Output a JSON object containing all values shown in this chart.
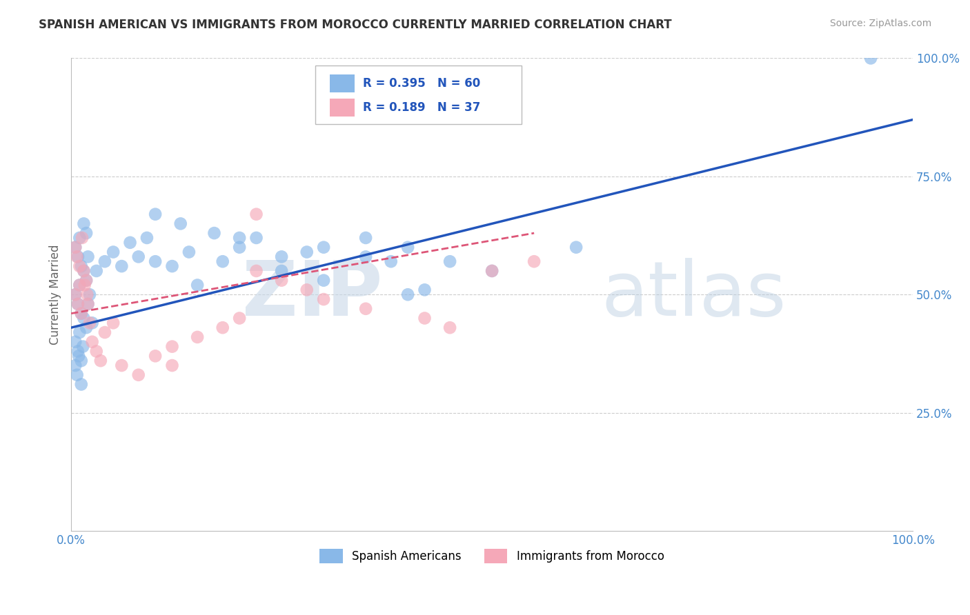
{
  "title": "SPANISH AMERICAN VS IMMIGRANTS FROM MOROCCO CURRENTLY MARRIED CORRELATION CHART",
  "source": "Source: ZipAtlas.com",
  "ylabel": "Currently Married",
  "xlim": [
    0.0,
    1.0
  ],
  "ylim": [
    0.0,
    1.0
  ],
  "xticks": [
    0.0,
    0.25,
    0.5,
    0.75,
    1.0
  ],
  "yticks": [
    0.0,
    0.25,
    0.5,
    0.75,
    1.0
  ],
  "xtick_labels": [
    "0.0%",
    "",
    "",
    "",
    "100.0%"
  ],
  "ytick_labels": [
    "",
    "25.0%",
    "50.0%",
    "75.0%",
    "100.0%"
  ],
  "blue_color": "#89b8e8",
  "pink_color": "#f5a8b8",
  "blue_line_color": "#2255bb",
  "pink_line_color": "#dd5577",
  "legend_R_blue": "R = 0.395",
  "legend_N_blue": "N = 60",
  "legend_R_pink": "R = 0.189",
  "legend_N_pink": "N = 37",
  "legend_label_blue": "Spanish Americans",
  "legend_label_pink": "Immigrants from Morocco",
  "watermark_zip": "ZIP",
  "watermark_atlas": "atlas",
  "background_color": "#ffffff",
  "grid_color": "#cccccc",
  "title_color": "#333333",
  "blue_line_x0": 0.0,
  "blue_line_y0": 0.43,
  "blue_line_x1": 1.0,
  "blue_line_y1": 0.87,
  "pink_line_x0": 0.0,
  "pink_line_y0": 0.46,
  "pink_line_x1": 0.55,
  "pink_line_y1": 0.63,
  "blue_scatter_x": [
    0.005,
    0.008,
    0.01,
    0.012,
    0.015,
    0.018,
    0.02,
    0.022,
    0.025,
    0.005,
    0.008,
    0.01,
    0.012,
    0.015,
    0.018,
    0.02,
    0.005,
    0.008,
    0.01,
    0.012,
    0.015,
    0.018,
    0.005,
    0.007,
    0.009,
    0.012,
    0.014,
    0.03,
    0.04,
    0.05,
    0.06,
    0.07,
    0.08,
    0.09,
    0.1,
    0.12,
    0.14,
    0.15,
    0.18,
    0.2,
    0.22,
    0.25,
    0.28,
    0.3,
    0.35,
    0.38,
    0.4,
    0.42,
    0.45,
    0.5,
    0.1,
    0.13,
    0.17,
    0.2,
    0.25,
    0.3,
    0.35,
    0.6,
    0.95,
    0.4
  ],
  "blue_scatter_y": [
    0.5,
    0.48,
    0.52,
    0.46,
    0.55,
    0.53,
    0.48,
    0.5,
    0.44,
    0.6,
    0.58,
    0.62,
    0.56,
    0.65,
    0.63,
    0.58,
    0.4,
    0.38,
    0.42,
    0.36,
    0.45,
    0.43,
    0.35,
    0.33,
    0.37,
    0.31,
    0.39,
    0.55,
    0.57,
    0.59,
    0.56,
    0.61,
    0.58,
    0.62,
    0.57,
    0.56,
    0.59,
    0.52,
    0.57,
    0.6,
    0.62,
    0.55,
    0.59,
    0.53,
    0.58,
    0.57,
    0.6,
    0.51,
    0.57,
    0.55,
    0.67,
    0.65,
    0.63,
    0.62,
    0.58,
    0.6,
    0.62,
    0.6,
    1.0,
    0.5
  ],
  "pink_scatter_x": [
    0.005,
    0.008,
    0.01,
    0.012,
    0.015,
    0.018,
    0.02,
    0.022,
    0.005,
    0.007,
    0.01,
    0.013,
    0.016,
    0.019,
    0.025,
    0.03,
    0.035,
    0.04,
    0.05,
    0.06,
    0.08,
    0.1,
    0.12,
    0.15,
    0.18,
    0.2,
    0.22,
    0.25,
    0.28,
    0.3,
    0.35,
    0.42,
    0.45,
    0.5,
    0.55,
    0.22,
    0.12
  ],
  "pink_scatter_y": [
    0.5,
    0.48,
    0.52,
    0.46,
    0.55,
    0.53,
    0.48,
    0.44,
    0.6,
    0.58,
    0.56,
    0.62,
    0.52,
    0.5,
    0.4,
    0.38,
    0.36,
    0.42,
    0.44,
    0.35,
    0.33,
    0.37,
    0.39,
    0.41,
    0.43,
    0.45,
    0.55,
    0.53,
    0.51,
    0.49,
    0.47,
    0.45,
    0.43,
    0.55,
    0.57,
    0.67,
    0.35
  ]
}
